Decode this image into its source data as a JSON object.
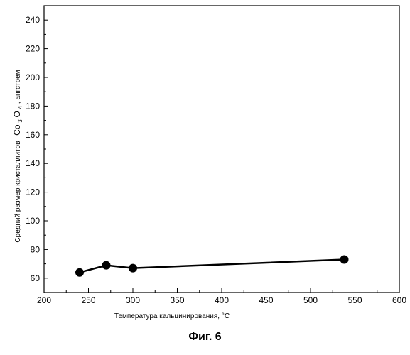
{
  "caption": "Фиг. 6",
  "chart_data": {
    "type": "line",
    "x": [
      240,
      270,
      300,
      538
    ],
    "series": [
      {
        "values": [
          64,
          69,
          67,
          73
        ]
      }
    ],
    "xlabel": "Температура кальцинирования, °C",
    "ylabel": {
      "before": "Средний размер кристаллитов",
      "compound": {
        "a": "Co",
        "sub1": "3",
        "b": "O",
        "sub2": "4"
      },
      "after": ", ангстрем"
    },
    "xlim": [
      200,
      600
    ],
    "ylim": [
      50,
      250
    ],
    "xticks": [
      200,
      250,
      300,
      350,
      400,
      450,
      500,
      550,
      600
    ],
    "yticks": [
      60,
      80,
      100,
      120,
      140,
      160,
      180,
      200,
      220,
      240
    ],
    "grid": false,
    "marker": "circle",
    "color": "#000000"
  }
}
